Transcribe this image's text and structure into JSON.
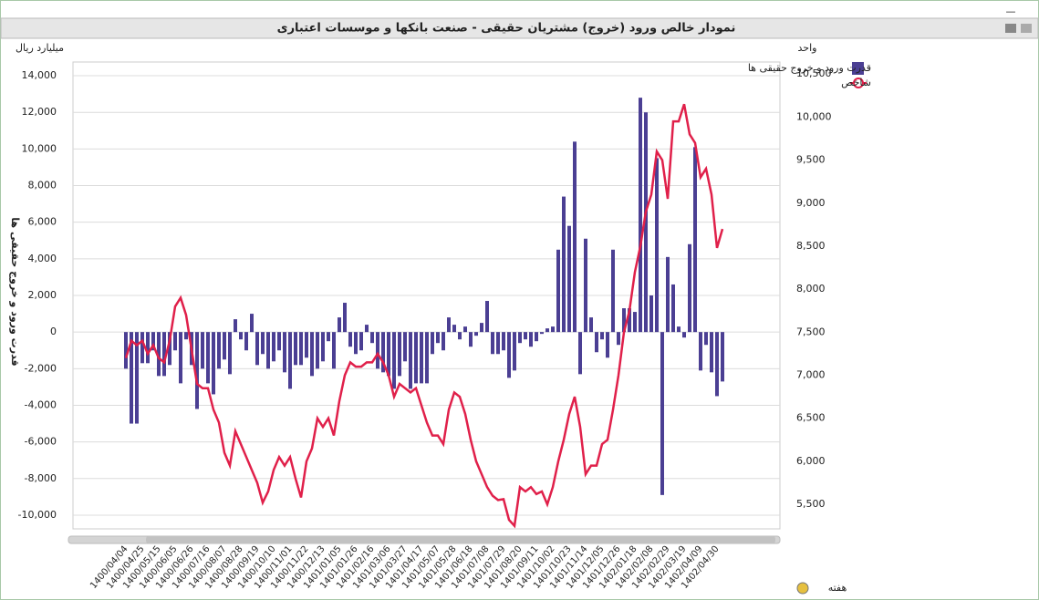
{
  "chart_data": {
    "type": "bar_line",
    "title": "نمودار خالص ورود (خروج) مشتریان حقیقی - صنعت بانکها و موسسات اعتباری",
    "y_unit": "میلیارد ریال",
    "y2_unit": "واحد",
    "ylabel": "قدرت ورود و خروج حقیقی ها",
    "xlabel": "هفته",
    "categories": [
      "1400/04/04",
      null,
      null,
      "1400/04/25",
      null,
      null,
      "1400/05/15",
      null,
      null,
      "1400/06/05",
      null,
      null,
      "1400/06/26",
      null,
      null,
      "1400/07/16",
      null,
      null,
      "1400/08/07",
      null,
      null,
      "1400/08/28",
      null,
      null,
      "1400/09/19",
      null,
      null,
      "1400/10/10",
      null,
      null,
      "1400/11/01",
      null,
      null,
      "1400/11/22",
      null,
      null,
      "1400/12/13",
      null,
      null,
      "1401/01/05",
      null,
      null,
      "1401/01/26",
      null,
      null,
      "1401/02/16",
      null,
      null,
      "1401/03/06",
      null,
      null,
      "1401/03/27",
      null,
      null,
      "1401/04/17",
      null,
      null,
      "1401/05/07",
      null,
      null,
      "1401/05/28",
      null,
      null,
      "1401/06/18",
      null,
      null,
      "1401/07/08",
      null,
      null,
      "1401/07/29",
      null,
      null,
      "1401/08/20",
      null,
      null,
      "1401/09/11",
      null,
      null,
      "1401/10/02",
      null,
      null,
      "1401/10/23",
      null,
      null,
      "1401/11/14",
      null,
      null,
      "1401/12/05",
      null,
      null,
      "1401/12/26",
      null,
      null,
      "1402/01/18",
      null,
      null,
      "1402/02/08",
      null,
      null,
      "1402/02/29",
      null,
      null,
      "1402/03/19",
      null,
      null,
      "1402/04/09",
      null,
      null,
      "1402/04/30",
      null
    ],
    "series": [
      {
        "name": "قدرت ورود و خروج حقیقی ها",
        "type": "bar",
        "color": "#4b3f93",
        "values": [
          -2000,
          -5000,
          -5000,
          -1700,
          -1700,
          -1000,
          -2400,
          -2400,
          -1800,
          -1000,
          -2800,
          -400,
          -1800,
          -4200,
          -2000,
          -2800,
          -3400,
          -2000,
          -1500,
          -2300,
          700,
          -400,
          -1000,
          1000,
          -1800,
          -1200,
          -2000,
          -1600,
          -1000,
          -2200,
          -3100,
          -1800,
          -1800,
          -1400,
          -2400,
          -2000,
          -1600,
          -500,
          -2000,
          800,
          1600,
          -800,
          -1200,
          -1000,
          400,
          -600,
          -2000,
          -2200,
          -2400,
          -3100,
          -2400,
          -1600,
          -3100,
          -2800,
          -2800,
          -2800,
          -1200,
          -600,
          -1000,
          800,
          400,
          -400,
          300,
          -800,
          -200,
          500,
          1700,
          -1200,
          -1200,
          -1000,
          -2500,
          -2100,
          -600,
          -400,
          -800,
          -500,
          -100,
          200,
          300,
          4500,
          7400,
          5800,
          10400,
          -2300,
          5100,
          800,
          -1100,
          -400,
          -1400,
          4500,
          -700,
          1300,
          1300,
          1100,
          12800,
          12000,
          2000,
          9500,
          -8900,
          4100,
          2600,
          300,
          -300,
          4800,
          10100,
          -2100,
          -700,
          -2200,
          -3500,
          -2700
        ]
      },
      {
        "name": "شاخص",
        "type": "line",
        "axis": "y2",
        "color": "#e0204a",
        "values": [
          7200,
          7400,
          7350,
          7400,
          7250,
          7350,
          7200,
          7150,
          7400,
          7800,
          7900,
          7700,
          7300,
          6900,
          6850,
          6850,
          6600,
          6450,
          6100,
          5950,
          6350,
          6200,
          6050,
          5900,
          5750,
          5520,
          5650,
          5900,
          6050,
          5950,
          6050,
          5800,
          5580,
          6000,
          6150,
          6500,
          6400,
          6500,
          6300,
          6700,
          7000,
          7150,
          7100,
          7100,
          7150,
          7150,
          7250,
          7150,
          7000,
          6750,
          6900,
          6850,
          6800,
          6850,
          6650,
          6450,
          6300,
          6300,
          6200,
          6600,
          6800,
          6750,
          6550,
          6250,
          6000,
          5850,
          5700,
          5600,
          5550,
          5560,
          5320,
          5250,
          5700,
          5650,
          5700,
          5620,
          5650,
          5500,
          5700,
          6000,
          6250,
          6550,
          6750,
          6400,
          5850,
          5950,
          5950,
          6200,
          6250,
          6600,
          7000,
          7500,
          7750,
          8200,
          8500,
          8900,
          9100,
          9600,
          9500,
          9050,
          9950,
          9950,
          10150,
          9800,
          9700,
          9300,
          9400,
          9100,
          8480,
          8700
        ]
      }
    ],
    "ylim": [
      -10750,
      14750
    ],
    "yticks": [
      {
        "value": -10000,
        "label": "-10,000"
      },
      {
        "value": -8000,
        "label": "-8,000"
      },
      {
        "value": -6000,
        "label": "-6,000"
      },
      {
        "value": -4000,
        "label": "-4,000"
      },
      {
        "value": -2000,
        "label": "-2,000"
      },
      0,
      {
        "value": 2000,
        "label": "2,000"
      },
      {
        "value": 4000,
        "label": "4,000"
      },
      {
        "value": 6000,
        "label": "6,000"
      },
      {
        "value": 8000,
        "label": "8,000"
      },
      {
        "value": 10000,
        "label": "10,000"
      },
      {
        "value": 12000,
        "label": "12,000"
      },
      {
        "value": 14000,
        "label": "14,000"
      }
    ],
    "y2lim": [
      5215,
      10640
    ],
    "y2ticks": [
      {
        "value": 5500,
        "label": "5,500"
      },
      {
        "value": 6000,
        "label": "6,000"
      },
      {
        "value": 6500,
        "label": "6,500"
      },
      {
        "value": 7000,
        "label": "7,000"
      },
      {
        "value": 7500,
        "label": "7,500"
      },
      {
        "value": 8000,
        "label": "8,000"
      },
      {
        "value": 8500,
        "label": "8,500"
      },
      {
        "value": 9000,
        "label": "9,000"
      },
      {
        "value": 9500,
        "label": "9,500"
      },
      {
        "value": 10000,
        "label": "10,000"
      },
      {
        "value": 10500,
        "label": "10,500"
      }
    ],
    "grid": true,
    "legend": "top-right"
  }
}
